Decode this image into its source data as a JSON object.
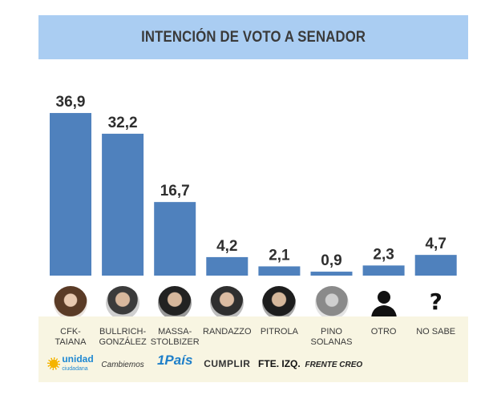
{
  "chart_data": {
    "type": "bar",
    "title": "INTENCIÓN DE VOTO A SENADOR",
    "categories": [
      "CFK-TAIANA",
      "BULLRICH-GONZÁLEZ",
      "MASSA-STOLBIZER",
      "RANDAZZO",
      "PITROLA",
      "PINO SOLANAS",
      "OTRO",
      "NO SABE"
    ],
    "values": [
      36.9,
      32.2,
      16.7,
      4.2,
      2.1,
      0.9,
      2.3,
      4.7
    ],
    "value_labels": [
      "36,9",
      "32,2",
      "16,7",
      "4,2",
      "2,1",
      "0,9",
      "2,3",
      "4,7"
    ],
    "ylim": [
      0,
      40
    ],
    "grid": false,
    "bar_color": "#4f81bd"
  },
  "candidates": [
    {
      "line1": "CFK-",
      "line2": "TAIANA",
      "party": "unidad",
      "party_sub": "ciudadana",
      "photo": "portrait-photo"
    },
    {
      "line1": "BULLRICH-",
      "line2": "GONZÁLEZ",
      "party": "Cambiemos",
      "party_sub": "",
      "photo": "portrait-photo"
    },
    {
      "line1": "MASSA-",
      "line2": "STOLBIZER",
      "party": "1País",
      "party_sub": "",
      "photo": "portrait-photo"
    },
    {
      "line1": "RANDAZZO",
      "line2": "",
      "party": "CUMPLIR",
      "party_sub": "",
      "photo": "portrait-photo"
    },
    {
      "line1": "PITROLA",
      "line2": "",
      "party": "FTE. IZQ.",
      "party_sub": "",
      "photo": "portrait-photo"
    },
    {
      "line1": "PINO",
      "line2": "SOLANAS",
      "party": "FRENTE CREO",
      "party_sub": "",
      "photo": "portrait-photo"
    },
    {
      "line1": "OTRO",
      "line2": "",
      "party": "",
      "party_sub": "",
      "photo": "person-silhouette-icon"
    },
    {
      "line1": "NO SABE",
      "line2": "",
      "party": "",
      "party_sub": "",
      "photo": "question-mark-icon"
    }
  ],
  "colors": {
    "title_band": "#aacdf2",
    "bottom_band": "#f8f5e2",
    "text": "#3a3a3a",
    "unidad_blue": "#1e88d2",
    "unidad_sun": "#f5b400",
    "pais_blue": "#1e7fc9"
  }
}
